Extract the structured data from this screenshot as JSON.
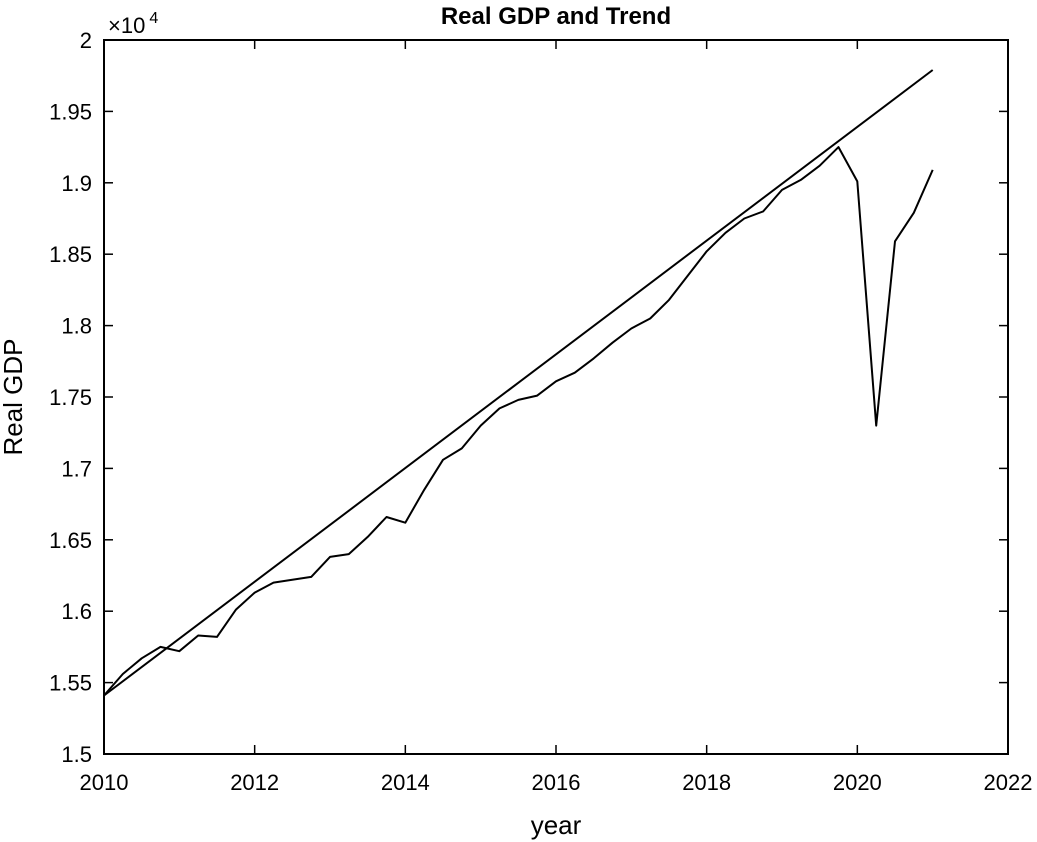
{
  "chart_data": {
    "type": "line",
    "title": "Real GDP and Trend",
    "xlabel": "year",
    "ylabel": "Real GDP",
    "xlim": [
      2010,
      2022
    ],
    "ylim": [
      15000,
      20000
    ],
    "x_ticks": [
      2010,
      2012,
      2014,
      2016,
      2018,
      2020,
      2022
    ],
    "x_tick_labels": [
      "2010",
      "2012",
      "2014",
      "2016",
      "2018",
      "2020",
      "2022"
    ],
    "y_ticks": [
      15000,
      15500,
      16000,
      16500,
      17000,
      17500,
      18000,
      18500,
      19000,
      19500,
      20000
    ],
    "y_tick_labels": [
      "1.5",
      "1.55",
      "1.6",
      "1.65",
      "1.7",
      "1.75",
      "1.8",
      "1.85",
      "1.9",
      "1.95",
      "2"
    ],
    "y_exponent": {
      "base": "×10",
      "power": "4"
    },
    "grid": false,
    "line_color": "#000000",
    "series": [
      {
        "x": [
          2010.0,
          2010.25,
          2010.5,
          2010.75,
          2011.0,
          2011.25,
          2011.5,
          2011.75,
          2012.0,
          2012.25,
          2012.5,
          2012.75,
          2013.0,
          2013.25,
          2013.5,
          2013.75,
          2014.0,
          2014.25,
          2014.5,
          2014.75,
          2015.0,
          2015.25,
          2015.5,
          2015.75,
          2016.0,
          2016.25,
          2016.5,
          2016.75,
          2017.0,
          2017.25,
          2017.5,
          2017.75,
          2018.0,
          2018.25,
          2018.5,
          2018.75,
          2019.0,
          2019.25,
          2019.5,
          2019.75,
          2020.0,
          2020.25,
          2020.5,
          2020.75,
          2021.0
        ],
        "values": [
          15410,
          15560,
          15670,
          15750,
          15720,
          15830,
          15820,
          16010,
          16130,
          16200,
          16220,
          16240,
          16380,
          16400,
          16520,
          16660,
          16620,
          16850,
          17060,
          17140,
          17300,
          17420,
          17480,
          17510,
          17610,
          17670,
          17770,
          17880,
          17980,
          18050,
          18180,
          18350,
          18520,
          18650,
          18750,
          18800,
          18950,
          19020,
          19120,
          19250,
          19010,
          17300,
          18590,
          18790,
          19090
        ]
      },
      {
        "x": [
          2010.0,
          2021.0
        ],
        "values": [
          15410,
          19790
        ]
      }
    ]
  }
}
